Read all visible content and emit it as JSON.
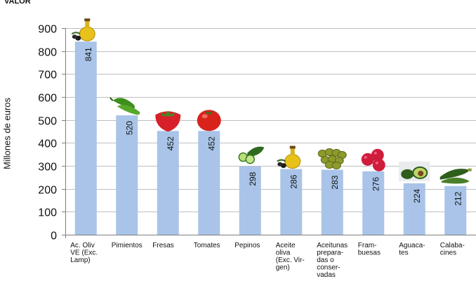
{
  "chart_data": {
    "type": "bar",
    "title": "VALOR",
    "ylabel": "Millones de euros",
    "xlabel": "",
    "ylim": [
      0,
      900
    ],
    "yticks": [
      0,
      100,
      200,
      300,
      400,
      500,
      600,
      700,
      800,
      900
    ],
    "grid": true,
    "categories": [
      [
        "Ac. Oliv",
        "VE (Exc.",
        "Lamp)"
      ],
      [
        "Pimientos"
      ],
      [
        "Fresas"
      ],
      [
        "Tomates"
      ],
      [
        "Pepinos"
      ],
      [
        "Aceite",
        "oliva",
        "(Exc. Vir-",
        "gen)"
      ],
      [
        "Aceitunas",
        "prepara-",
        "das o",
        "conser-",
        "vadas"
      ],
      [
        "Fram-",
        "buesas"
      ],
      [
        "Aguaca-",
        "tes"
      ],
      [
        "Calaba-",
        "cines"
      ]
    ],
    "values": [
      841,
      520,
      452,
      452,
      298,
      286,
      283,
      276,
      224,
      212
    ],
    "icons": [
      "olive-oil-bottle-icon",
      "green-peppers-icon",
      "strawberry-icon",
      "tomato-icon",
      "cucumber-icon",
      "olive-oil-bottle-icon",
      "olives-icon",
      "raspberries-icon",
      "avocado-icon",
      "zucchini-icon"
    ],
    "colors": {
      "bar": "#a9c4e8",
      "grid": "#bfbfbf",
      "axis": "#7f7f7f"
    }
  }
}
